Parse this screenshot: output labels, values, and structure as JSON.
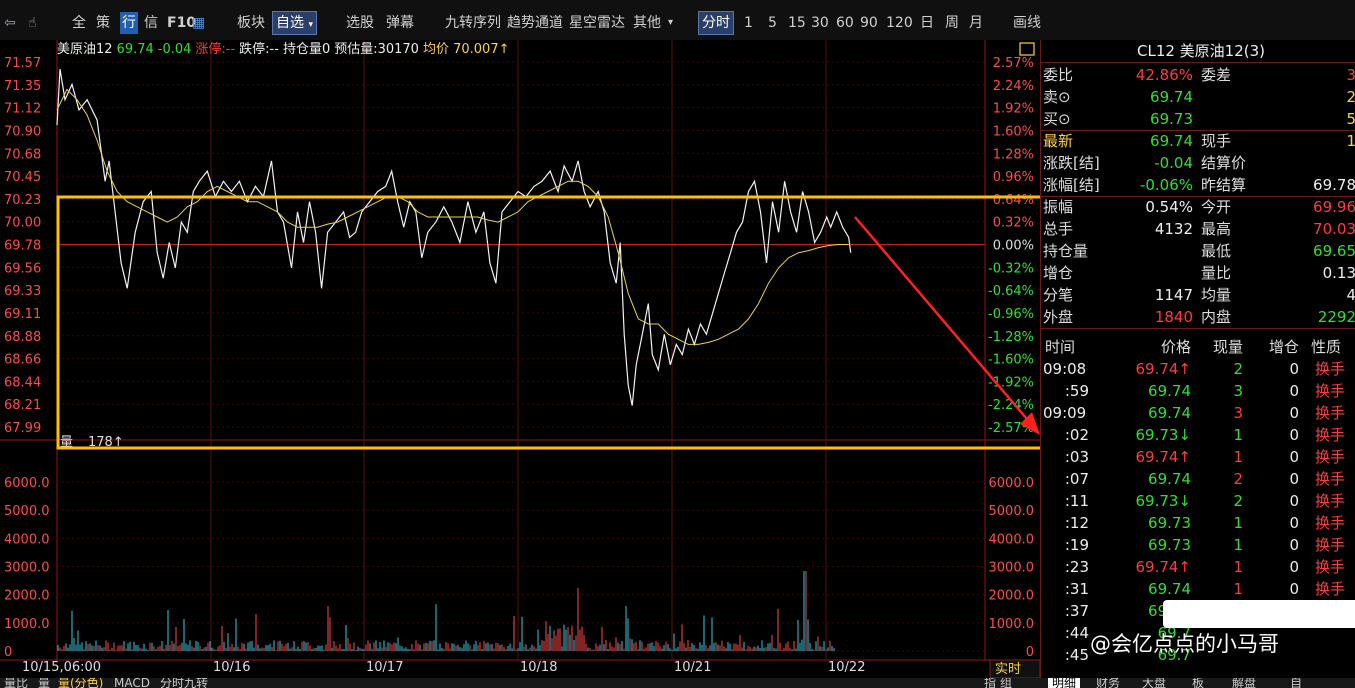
{
  "toolbar": {
    "items": [
      "全",
      "策",
      "行",
      "信",
      "F10",
      "板块",
      "自选",
      "选股",
      "弹幕",
      "九转序列",
      "趋势通道",
      "星空雷达",
      "其他",
      "分时",
      "1",
      "5",
      "15",
      "30",
      "60",
      "90",
      "120",
      "日",
      "周",
      "月",
      "画线"
    ],
    "selected": [
      "自选",
      "分时"
    ]
  },
  "info": {
    "name": "美原油12",
    "price": "69.74",
    "change": "-0.04",
    "limit_up": "涨停:--",
    "limit_down": "跌停:--",
    "open_interest": "持仓量0",
    "est_volume": "预估量:30170",
    "avg_price": "均价 70.007↑"
  },
  "chart_data": {
    "type": "line",
    "price_axis_left": [
      "71.57",
      "71.35",
      "71.12",
      "70.90",
      "70.68",
      "70.45",
      "70.23",
      "70.00",
      "69.78",
      "69.56",
      "69.33",
      "69.11",
      "68.88",
      "68.66",
      "68.44",
      "68.21",
      "67.99"
    ],
    "pct_axis_right": [
      "2.57%",
      "2.24%",
      "1.92%",
      "1.60%",
      "1.28%",
      "0.96%",
      "0.64%",
      "0.32%",
      "0.00%",
      "-0.32%",
      "-0.64%",
      "-0.96%",
      "-1.28%",
      "-1.60%",
      "-1.92%",
      "-2.24%",
      "-2.57%"
    ],
    "volume_axis": [
      "6000.0",
      "5000.0",
      "4000.0",
      "3000.0",
      "2000.0",
      "1000.0",
      "0"
    ],
    "x_labels": [
      "10/15,06:00",
      "10/16",
      "10/17",
      "10/18",
      "10/21",
      "10/22"
    ],
    "prev_settle": 69.78,
    "series": [
      {
        "points": [
          [
            0,
            70.95
          ],
          [
            3,
            71.5
          ],
          [
            8,
            71.2
          ],
          [
            15,
            71.35
          ],
          [
            22,
            71.1
          ],
          [
            30,
            71.2
          ],
          [
            40,
            71.0
          ],
          [
            48,
            70.4
          ],
          [
            52,
            70.6
          ],
          [
            58,
            70.1
          ],
          [
            64,
            69.6
          ],
          [
            70,
            69.35
          ],
          [
            78,
            69.9
          ],
          [
            86,
            70.2
          ],
          [
            94,
            70.3
          ],
          [
            100,
            69.7
          ],
          [
            106,
            69.45
          ],
          [
            112,
            69.8
          ],
          [
            118,
            69.55
          ],
          [
            124,
            70.0
          ],
          [
            130,
            69.9
          ],
          [
            136,
            70.3
          ],
          [
            142,
            70.4
          ],
          [
            150,
            70.5
          ],
          [
            158,
            70.25
          ],
          [
            166,
            70.4
          ],
          [
            174,
            70.3
          ],
          [
            182,
            70.4
          ],
          [
            190,
            70.2
          ],
          [
            198,
            70.35
          ],
          [
            206,
            70.25
          ],
          [
            214,
            70.6
          ],
          [
            220,
            70.1
          ],
          [
            226,
            70.0
          ],
          [
            234,
            69.55
          ],
          [
            240,
            70.1
          ],
          [
            246,
            69.8
          ],
          [
            252,
            70.2
          ],
          [
            258,
            69.9
          ],
          [
            264,
            69.35
          ],
          [
            270,
            69.9
          ],
          [
            278,
            70.0
          ],
          [
            286,
            70.1
          ],
          [
            292,
            69.85
          ],
          [
            298,
            69.9
          ],
          [
            304,
            70.1
          ],
          [
            312,
            70.2
          ],
          [
            320,
            70.3
          ],
          [
            328,
            70.35
          ],
          [
            334,
            70.5
          ],
          [
            340,
            70.2
          ],
          [
            346,
            69.95
          ],
          [
            352,
            70.2
          ],
          [
            358,
            70.1
          ],
          [
            364,
            69.65
          ],
          [
            370,
            69.9
          ],
          [
            378,
            70.0
          ],
          [
            386,
            70.15
          ],
          [
            394,
            70.0
          ],
          [
            402,
            69.8
          ],
          [
            410,
            70.2
          ],
          [
            418,
            69.9
          ],
          [
            426,
            70.1
          ],
          [
            432,
            69.6
          ],
          [
            438,
            69.4
          ],
          [
            444,
            70.1
          ],
          [
            452,
            70.2
          ],
          [
            460,
            70.3
          ],
          [
            468,
            70.25
          ],
          [
            476,
            70.35
          ],
          [
            484,
            70.4
          ],
          [
            492,
            70.5
          ],
          [
            500,
            70.3
          ],
          [
            506,
            70.55
          ],
          [
            514,
            70.4
          ],
          [
            520,
            70.6
          ],
          [
            526,
            70.3
          ],
          [
            532,
            70.15
          ],
          [
            540,
            70.3
          ],
          [
            546,
            70.1
          ],
          [
            552,
            69.6
          ],
          [
            558,
            69.4
          ],
          [
            562,
            69.8
          ],
          [
            566,
            68.9
          ],
          [
            570,
            68.4
          ],
          [
            574,
            68.2
          ],
          [
            578,
            68.6
          ],
          [
            584,
            68.9
          ],
          [
            590,
            69.2
          ],
          [
            594,
            68.7
          ],
          [
            600,
            68.55
          ],
          [
            606,
            68.9
          ],
          [
            612,
            68.6
          ],
          [
            618,
            68.8
          ],
          [
            624,
            68.7
          ],
          [
            630,
            68.95
          ],
          [
            636,
            68.8
          ],
          [
            642,
            69.0
          ],
          [
            648,
            68.9
          ],
          [
            654,
            69.1
          ],
          [
            660,
            69.3
          ],
          [
            666,
            69.5
          ],
          [
            672,
            69.7
          ],
          [
            678,
            69.9
          ],
          [
            684,
            70.0
          ],
          [
            690,
            70.3
          ],
          [
            696,
            70.4
          ],
          [
            702,
            70.1
          ],
          [
            708,
            69.6
          ],
          [
            714,
            70.2
          ],
          [
            720,
            69.9
          ],
          [
            726,
            70.4
          ],
          [
            732,
            70.1
          ],
          [
            738,
            69.9
          ],
          [
            744,
            70.3
          ],
          [
            750,
            70.1
          ],
          [
            756,
            69.8
          ],
          [
            762,
            69.9
          ],
          [
            768,
            70.05
          ],
          [
            772,
            69.95
          ],
          [
            778,
            70.1
          ],
          [
            784,
            69.95
          ],
          [
            790,
            69.85
          ],
          [
            792,
            69.7
          ]
        ]
      },
      {
        "name": "均价",
        "points": [
          [
            0,
            71.1
          ],
          [
            10,
            71.3
          ],
          [
            20,
            71.2
          ],
          [
            30,
            71.05
          ],
          [
            40,
            70.8
          ],
          [
            50,
            70.5
          ],
          [
            60,
            70.3
          ],
          [
            70,
            70.2
          ],
          [
            80,
            70.15
          ],
          [
            90,
            70.1
          ],
          [
            100,
            70.05
          ],
          [
            110,
            70.0
          ],
          [
            120,
            70.05
          ],
          [
            130,
            70.15
          ],
          [
            140,
            70.2
          ],
          [
            150,
            70.3
          ],
          [
            160,
            70.35
          ],
          [
            170,
            70.3
          ],
          [
            180,
            70.25
          ],
          [
            190,
            70.2
          ],
          [
            200,
            70.2
          ],
          [
            210,
            70.15
          ],
          [
            220,
            70.1
          ],
          [
            230,
            70.0
          ],
          [
            240,
            69.95
          ],
          [
            250,
            69.95
          ],
          [
            260,
            69.95
          ],
          [
            270,
            69.98
          ],
          [
            280,
            70.0
          ],
          [
            290,
            70.05
          ],
          [
            300,
            70.1
          ],
          [
            310,
            70.15
          ],
          [
            320,
            70.2
          ],
          [
            330,
            70.25
          ],
          [
            340,
            70.25
          ],
          [
            350,
            70.2
          ],
          [
            360,
            70.1
          ],
          [
            370,
            70.05
          ],
          [
            380,
            70.05
          ],
          [
            390,
            70.05
          ],
          [
            400,
            70.05
          ],
          [
            410,
            70.05
          ],
          [
            420,
            70.05
          ],
          [
            430,
            70.02
          ],
          [
            440,
            70.0
          ],
          [
            450,
            70.05
          ],
          [
            460,
            70.1
          ],
          [
            470,
            70.2
          ],
          [
            480,
            70.25
          ],
          [
            490,
            70.3
          ],
          [
            500,
            70.35
          ],
          [
            510,
            70.4
          ],
          [
            520,
            70.4
          ],
          [
            530,
            70.35
          ],
          [
            540,
            70.25
          ],
          [
            550,
            70.05
          ],
          [
            560,
            69.7
          ],
          [
            570,
            69.3
          ],
          [
            580,
            69.05
          ],
          [
            590,
            69.0
          ],
          [
            600,
            69.0
          ],
          [
            610,
            68.9
          ],
          [
            620,
            68.85
          ],
          [
            630,
            68.8
          ],
          [
            640,
            68.8
          ],
          [
            650,
            68.82
          ],
          [
            660,
            68.85
          ],
          [
            670,
            68.9
          ],
          [
            680,
            68.95
          ],
          [
            690,
            69.05
          ],
          [
            700,
            69.2
          ],
          [
            710,
            69.4
          ],
          [
            720,
            69.55
          ],
          [
            730,
            69.65
          ],
          [
            740,
            69.7
          ],
          [
            750,
            69.72
          ],
          [
            760,
            69.75
          ],
          [
            770,
            69.77
          ],
          [
            780,
            69.78
          ],
          [
            790,
            69.78
          ]
        ]
      }
    ]
  },
  "volume": {
    "label": "量",
    "value": "178↑"
  },
  "realtime_tab": "实时",
  "panel": {
    "title": "CL12 美原油12(3)",
    "quote_rows": [
      {
        "l1": "委比",
        "v1": "42.86%",
        "c1": "red",
        "l2": "委差",
        "v2": "3",
        "c2": "red"
      },
      {
        "l1": "卖⊙",
        "v1": "69.74",
        "c1": "green",
        "l2": "",
        "v2": "2",
        "c2": "yellow"
      },
      {
        "l1": "买⊙",
        "v1": "69.73",
        "c1": "green",
        "l2": "",
        "v2": "5",
        "c2": "yellow"
      },
      {
        "l1": "最新",
        "v1": "69.74",
        "c1": "green",
        "l2": "现手",
        "v2": "1",
        "c2": "yellow",
        "l1c": "yellow"
      },
      {
        "l1": "涨跌[结]",
        "v1": "-0.04",
        "c1": "green",
        "l2": "结算价",
        "v2": "",
        "c2": "white"
      },
      {
        "l1": "涨幅[结]",
        "v1": "-0.06%",
        "c1": "green",
        "l2": "昨结算",
        "v2": "69.78",
        "c2": "white"
      },
      {
        "l1": "振幅",
        "v1": "0.54%",
        "c1": "white",
        "l2": "今开",
        "v2": "69.96",
        "c2": "red"
      },
      {
        "l1": "总手",
        "v1": "4132",
        "c1": "white",
        "l2": "最高",
        "v2": "70.03",
        "c2": "red"
      },
      {
        "l1": "持仓量",
        "v1": "",
        "c1": "white",
        "l2": "最低",
        "v2": "69.65",
        "c2": "green"
      },
      {
        "l1": "增仓",
        "v1": "",
        "c1": "white",
        "l2": "量比",
        "v2": "0.13",
        "c2": "white"
      },
      {
        "l1": "分笔",
        "v1": "1147",
        "c1": "white",
        "l2": "均量",
        "v2": "4",
        "c2": "white"
      },
      {
        "l1": "外盘",
        "v1": "1840",
        "c1": "red",
        "l2": "内盘",
        "v2": "2292",
        "c2": "green"
      }
    ],
    "ticks_header": [
      "时间",
      "价格",
      "现量",
      "增仓",
      "性质"
    ],
    "ticks": [
      {
        "t": "09:08",
        "p": "69.74↑",
        "pc": "red",
        "q": "2",
        "qc": "green",
        "z": "0",
        "n": "换手"
      },
      {
        "t": ":59",
        "p": "69.74",
        "pc": "green",
        "q": "3",
        "qc": "green",
        "z": "0",
        "n": "换手"
      },
      {
        "t": "09:09",
        "p": "69.74",
        "pc": "green",
        "q": "3",
        "qc": "red",
        "z": "0",
        "n": "换手"
      },
      {
        "t": ":02",
        "p": "69.73↓",
        "pc": "green",
        "q": "1",
        "qc": "green",
        "z": "0",
        "n": "换手"
      },
      {
        "t": ":03",
        "p": "69.74↑",
        "pc": "red",
        "q": "1",
        "qc": "red",
        "z": "0",
        "n": "换手"
      },
      {
        "t": ":07",
        "p": "69.74",
        "pc": "green",
        "q": "2",
        "qc": "red",
        "z": "0",
        "n": "换手"
      },
      {
        "t": ":11",
        "p": "69.73↓",
        "pc": "green",
        "q": "2",
        "qc": "green",
        "z": "0",
        "n": "换手"
      },
      {
        "t": ":12",
        "p": "69.73",
        "pc": "green",
        "q": "1",
        "qc": "green",
        "z": "0",
        "n": "换手"
      },
      {
        "t": ":19",
        "p": "69.73",
        "pc": "green",
        "q": "1",
        "qc": "green",
        "z": "0",
        "n": "换手"
      },
      {
        "t": ":23",
        "p": "69.74↑",
        "pc": "red",
        "q": "1",
        "qc": "red",
        "z": "0",
        "n": "换手"
      },
      {
        "t": ":31",
        "p": "69.74",
        "pc": "green",
        "q": "1",
        "qc": "red",
        "z": "0",
        "n": "换手"
      },
      {
        "t": ":37",
        "p": "69.74",
        "pc": "green",
        "q": "",
        "qc": "green",
        "z": "",
        "n": ""
      },
      {
        "t": ":44",
        "p": "69.7",
        "pc": "green",
        "q": "",
        "qc": "green",
        "z": "",
        "n": ""
      },
      {
        "t": ":45",
        "p": "69.7",
        "pc": "green",
        "q": "",
        "qc": "green",
        "z": "",
        "n": ""
      }
    ]
  },
  "bottom_tabs": [
    "量比",
    "量",
    "量(分色)",
    "MACD",
    "分时九转"
  ],
  "bottom_right_tabs": [
    "明细",
    "财务",
    "大盘",
    "板",
    "解盘",
    "自"
  ],
  "bottom_right_misc": [
    "指",
    "组"
  ],
  "watermark": "@会亿点点的小马哥"
}
